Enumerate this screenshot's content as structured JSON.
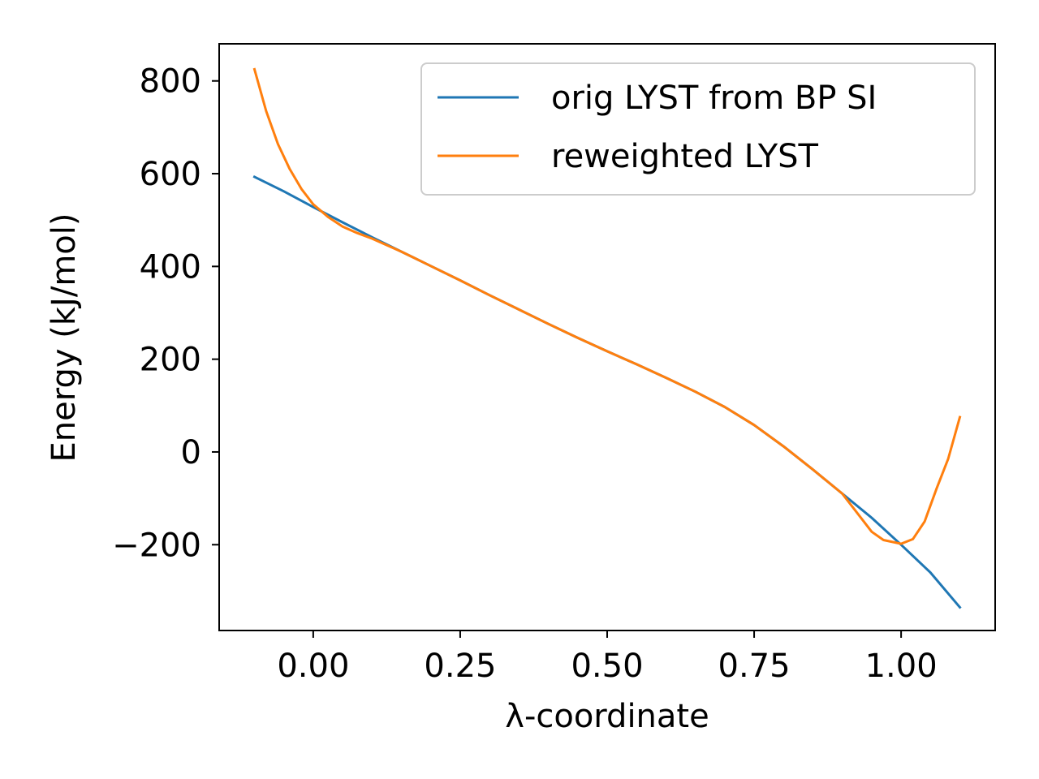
{
  "chart_data": {
    "type": "line",
    "xlabel": "λ-coordinate",
    "ylabel": "Energy (kJ/mol)",
    "xlim": [
      -0.16,
      1.16
    ],
    "ylim": [
      -385,
      880
    ],
    "grid": false,
    "legend_position": "top-right",
    "x_ticks": [
      0.0,
      0.25,
      0.5,
      0.75,
      1.0
    ],
    "x_tick_labels": [
      "0.00",
      "0.25",
      "0.50",
      "0.75",
      "1.00"
    ],
    "y_ticks": [
      -200,
      0,
      200,
      400,
      600,
      800
    ],
    "y_tick_labels": [
      "−200",
      "0",
      "200",
      "400",
      "600",
      "800"
    ],
    "series": [
      {
        "name": "orig LYST from BP SI",
        "color": "#1f77b4",
        "x": [
          -0.1,
          -0.05,
          0.0,
          0.05,
          0.1,
          0.15,
          0.2,
          0.25,
          0.3,
          0.35,
          0.4,
          0.45,
          0.5,
          0.55,
          0.6,
          0.65,
          0.7,
          0.75,
          0.8,
          0.85,
          0.9,
          0.95,
          1.0,
          1.05,
          1.1
        ],
        "y": [
          593,
          562,
          528,
          495,
          463,
          432,
          401,
          370,
          338,
          307,
          276,
          246,
          217,
          189,
          160,
          130,
          97,
          58,
          12,
          -38,
          -90,
          -142,
          -200,
          -260,
          -335
        ]
      },
      {
        "name": "reweighted LYST",
        "color": "#ff7f0e",
        "x": [
          -0.1,
          -0.08,
          -0.06,
          -0.04,
          -0.02,
          0.0,
          0.025,
          0.05,
          0.075,
          0.1,
          0.15,
          0.2,
          0.25,
          0.3,
          0.35,
          0.4,
          0.45,
          0.5,
          0.55,
          0.6,
          0.65,
          0.7,
          0.75,
          0.8,
          0.85,
          0.9,
          0.95,
          0.97,
          1.0,
          1.02,
          1.04,
          1.06,
          1.08,
          1.1
        ],
        "y": [
          825,
          735,
          664,
          610,
          567,
          534,
          507,
          486,
          472,
          460,
          432,
          401,
          370,
          338,
          307,
          276,
          246,
          217,
          189,
          160,
          130,
          97,
          58,
          12,
          -38,
          -90,
          -172,
          -190,
          -198,
          -188,
          -150,
          -80,
          -15,
          75
        ]
      }
    ]
  }
}
